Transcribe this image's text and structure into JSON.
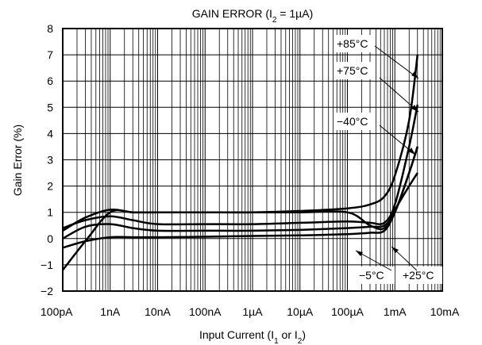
{
  "chart_data": {
    "type": "line",
    "title": "GAIN ERROR (I",
    "title_sub": "2",
    "title_tail": " = 1µA)",
    "xlabel": "Input Current (I",
    "xlabel_sub1": "1",
    "xlabel_mid": " or I",
    "xlabel_sub2": "2",
    "xlabel_tail": ")",
    "ylabel": "Gain Error (%)",
    "x_scale": "log",
    "xlim": [
      1e-10,
      0.01
    ],
    "ylim": [
      -2,
      8
    ],
    "x_ticks": [
      1e-10,
      1e-09,
      1e-08,
      1e-07,
      1e-06,
      1e-05,
      0.0001,
      0.001,
      0.01
    ],
    "x_tick_labels": [
      "100pA",
      "1nA",
      "10nA",
      "100nA",
      "1µA",
      "10µA",
      "100µA",
      "1mA",
      "10mA"
    ],
    "y_ticks": [
      -2,
      -1,
      0,
      1,
      2,
      3,
      4,
      5,
      6,
      7,
      8
    ],
    "y_tick_labels": [
      "−2",
      "−1",
      "0",
      "1",
      "2",
      "3",
      "4",
      "5",
      "6",
      "7",
      "8"
    ],
    "grid": true,
    "series": [
      {
        "name": "+85°C",
        "x": [
          1e-10,
          3e-10,
          1e-09,
          3e-09,
          1e-08,
          1e-07,
          1e-06,
          1e-05,
          0.0001,
          0.0003,
          0.0006,
          0.001,
          0.002,
          0.003
        ],
        "y": [
          0.3,
          0.8,
          1.1,
          1.0,
          1.0,
          1.0,
          1.0,
          1.05,
          1.15,
          1.3,
          1.6,
          2.4,
          4.5,
          7.0
        ]
      },
      {
        "name": "+75°C",
        "x": [
          1e-10,
          3e-10,
          1e-09,
          3e-09,
          1e-08,
          1e-07,
          1e-06,
          1e-05,
          0.0001,
          0.0003,
          0.0006,
          0.001,
          0.002,
          0.003
        ],
        "y": [
          0.4,
          0.7,
          0.85,
          0.7,
          0.55,
          0.55,
          0.55,
          0.6,
          0.65,
          0.6,
          0.6,
          1.3,
          3.5,
          5.1
        ]
      },
      {
        "name": "−40°C",
        "x": [
          1e-10,
          3e-10,
          1e-09,
          3e-09,
          1e-08,
          1e-07,
          1e-06,
          1e-05,
          0.0001,
          0.0003,
          0.0006,
          0.001,
          0.002,
          0.003
        ],
        "y": [
          0.0,
          0.45,
          0.55,
          0.4,
          0.3,
          0.3,
          0.3,
          0.33,
          0.4,
          0.45,
          0.5,
          1.0,
          2.5,
          3.5
        ]
      },
      {
        "name": "+25°C",
        "x": [
          1e-10,
          3e-10,
          1e-09,
          3e-09,
          1e-08,
          1e-07,
          1e-06,
          1e-05,
          0.0001,
          0.0003,
          0.0006,
          0.001,
          0.002,
          0.003
        ],
        "y": [
          -1.2,
          -0.1,
          1.0,
          1.0,
          1.0,
          1.0,
          1.0,
          1.0,
          1.0,
          0.5,
          0.4,
          1.1,
          2.0,
          2.5
        ]
      },
      {
        "name": "−5°C",
        "x": [
          1e-10,
          3e-10,
          1e-09,
          3e-09,
          1e-08,
          1e-07,
          1e-06,
          1e-05,
          0.0001,
          0.0003,
          0.0006,
          0.001,
          0.002,
          0.003
        ],
        "y": [
          -0.35,
          -0.1,
          0.05,
          0.05,
          0.05,
          0.07,
          0.1,
          0.12,
          0.17,
          0.22,
          0.3,
          1.0,
          2.5,
          3.5
        ]
      }
    ],
    "annotations": [
      "+85°C",
      "+75°C",
      "−40°C",
      "−5°C",
      "+25°C"
    ]
  }
}
